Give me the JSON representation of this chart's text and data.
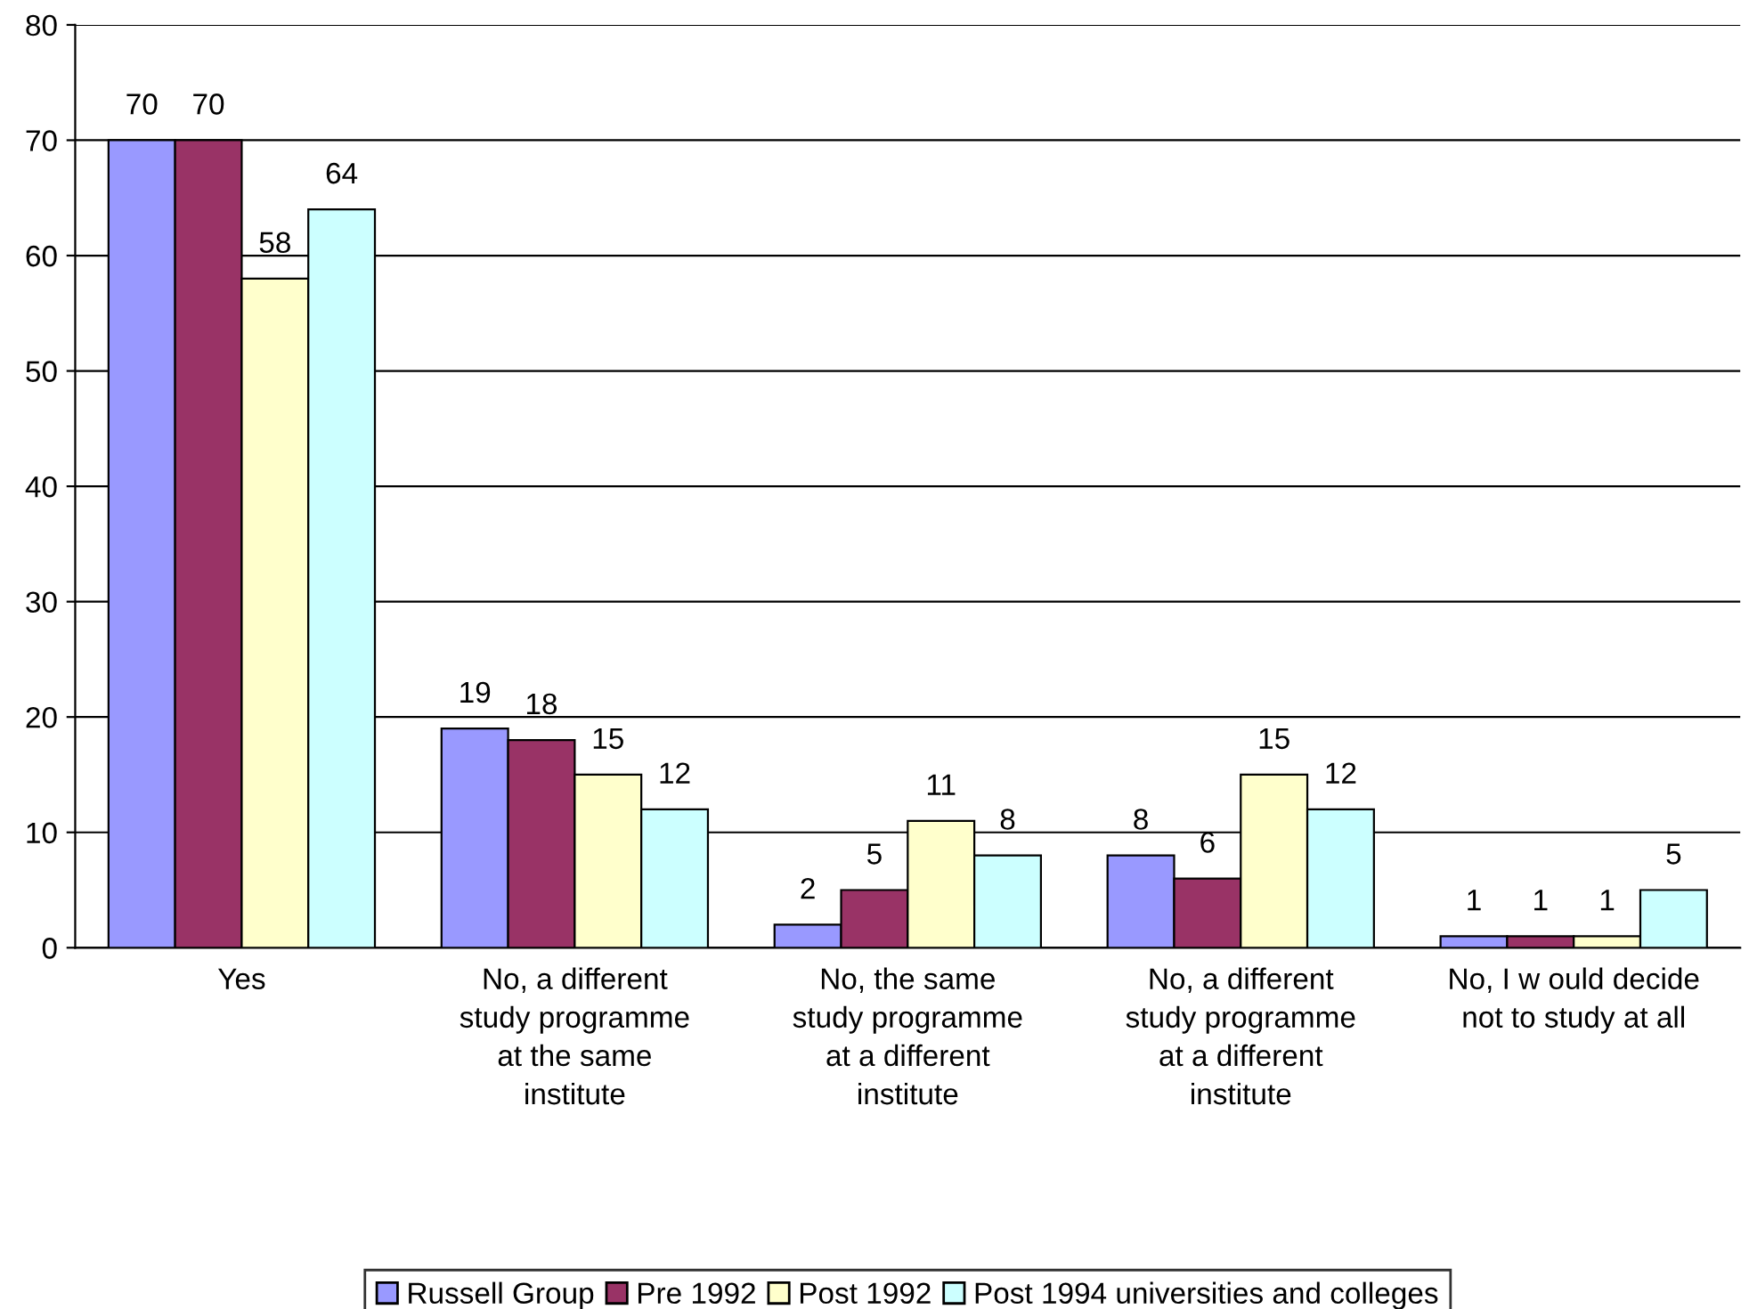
{
  "chart_data": {
    "type": "bar",
    "categories": [
      "Yes",
      "No, a different\nstudy programme\nat the same\ninstitute",
      "No, the same\nstudy programme\nat a different\ninstitute",
      "No, a different\nstudy programme\nat a different\ninstitute",
      "No, I w ould decide\nnot to study at all"
    ],
    "series": [
      {
        "name": "Russell Group",
        "color": "#9999ff",
        "values": [
          70,
          19,
          2,
          8,
          1
        ]
      },
      {
        "name": "Pre 1992",
        "color": "#993366",
        "values": [
          70,
          18,
          5,
          6,
          1
        ]
      },
      {
        "name": "Post 1992",
        "color": "#ffffcc",
        "values": [
          58,
          15,
          11,
          15,
          1
        ]
      },
      {
        "name": "Post 1994 universities and colleges",
        "color": "#ccffff",
        "values": [
          64,
          12,
          8,
          12,
          5
        ]
      }
    ],
    "ylim": [
      0,
      80
    ],
    "yticks": [
      0,
      10,
      20,
      30,
      40,
      50,
      60,
      70,
      80
    ],
    "grid": "y",
    "legend": "bottom",
    "data_labels": true
  }
}
